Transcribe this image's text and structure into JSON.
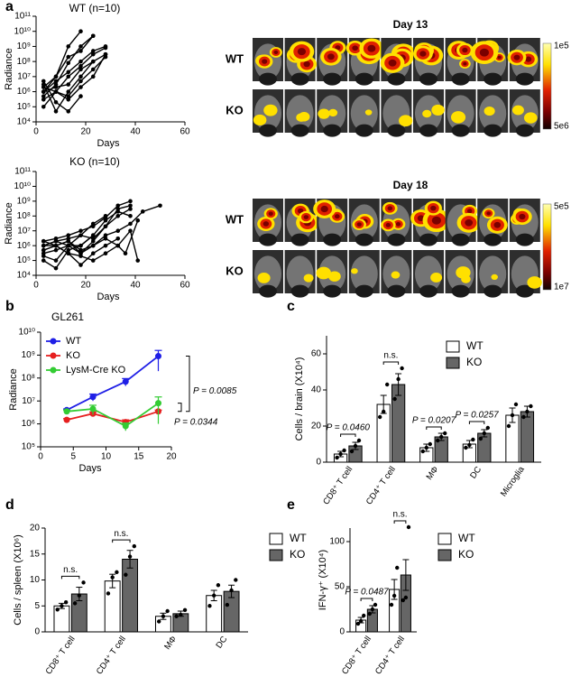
{
  "chart_data": [
    {
      "type": "line",
      "panel_label": "a",
      "title": "WT  (n=10)",
      "xlabel": "Days",
      "ylabel": "Radiance",
      "log_y": true,
      "xlim": [
        0,
        60
      ],
      "xticks": [
        0,
        20,
        40,
        60
      ],
      "ylim": [
        10000,
        100000000000
      ],
      "yticks": [
        {
          "value": 10000,
          "label": "10⁴"
        },
        {
          "value": 100000,
          "label": "10⁵"
        },
        {
          "value": 1000000,
          "label": "10⁶"
        },
        {
          "value": 10000000,
          "label": "10⁷"
        },
        {
          "value": 100000000,
          "label": "10⁸"
        },
        {
          "value": 1000000000,
          "label": "10⁹"
        },
        {
          "value": 10000000000,
          "label": "10¹⁰"
        },
        {
          "value": 100000000000,
          "label": "10¹¹"
        }
      ],
      "series": [
        {
          "color": "#000000",
          "x": [
            3,
            8,
            13,
            18
          ],
          "values": [
            1000000,
            10000000,
            1000000000,
            10000000000
          ]
        },
        {
          "color": "#000000",
          "x": [
            3,
            8,
            13,
            18,
            23
          ],
          "values": [
            500000,
            3000000,
            80000000,
            1000000000,
            5000000000
          ]
        },
        {
          "color": "#000000",
          "x": [
            3,
            8,
            13,
            18,
            23
          ],
          "values": [
            2000000,
            10000000,
            200000000,
            500000000,
            5000000000
          ]
        },
        {
          "color": "#000000",
          "x": [
            3,
            8,
            13,
            18,
            23,
            28
          ],
          "values": [
            1000000,
            5000000,
            20000000,
            100000000,
            500000000,
            1000000000
          ]
        },
        {
          "color": "#000000",
          "x": [
            3,
            8,
            13,
            18,
            23,
            28
          ],
          "values": [
            300000,
            1000000,
            10000000,
            50000000,
            300000000,
            800000000
          ]
        },
        {
          "color": "#000000",
          "x": [
            3,
            8,
            13,
            18,
            23,
            28
          ],
          "values": [
            1000000,
            2000000,
            3000000,
            30000000,
            100000000,
            300000000
          ]
        },
        {
          "color": "#000000",
          "x": [
            3,
            8,
            13,
            18,
            23,
            28
          ],
          "values": [
            100000,
            1000000,
            500000,
            5000000,
            30000000,
            200000000
          ]
        },
        {
          "color": "#000000",
          "x": [
            3,
            8,
            13,
            18,
            23
          ],
          "values": [
            3000000,
            50000,
            1000000,
            10000000,
            100000000
          ]
        },
        {
          "color": "#000000",
          "x": [
            3,
            8,
            13,
            18
          ],
          "values": [
            5000000,
            200000,
            50000,
            500000
          ]
        },
        {
          "color": "#000000",
          "x": [
            3,
            8,
            13,
            18,
            23,
            28
          ],
          "values": [
            2000000,
            1000000,
            300000,
            2000000,
            10000000,
            300000000
          ]
        }
      ]
    },
    {
      "type": "line",
      "title": "KO (n=10)",
      "xlabel": "Days",
      "ylabel": "Radiance",
      "log_y": true,
      "xlim": [
        0,
        60
      ],
      "xticks": [
        0,
        20,
        40,
        60
      ],
      "ylim": [
        10000,
        100000000000
      ],
      "yticks": [
        {
          "value": 10000,
          "label": "10⁴"
        },
        {
          "value": 100000,
          "label": "10⁵"
        },
        {
          "value": 1000000,
          "label": "10⁶"
        },
        {
          "value": 10000000,
          "label": "10⁷"
        },
        {
          "value": 100000000,
          "label": "10⁸"
        },
        {
          "value": 1000000000,
          "label": "10⁹"
        },
        {
          "value": 10000000000,
          "label": "10¹⁰"
        },
        {
          "value": 100000000000,
          "label": "10¹¹"
        }
      ],
      "series": [
        {
          "color": "#000000",
          "x": [
            3,
            8,
            13,
            18,
            23,
            28,
            33,
            38
          ],
          "values": [
            2000000,
            3000000,
            5000000,
            10000000,
            20000000,
            80000000,
            500000000,
            1000000000
          ]
        },
        {
          "color": "#000000",
          "x": [
            3,
            8,
            13,
            18,
            23,
            28,
            33,
            38
          ],
          "values": [
            1000000,
            2000000,
            3000000,
            5000000,
            3000000,
            20000000,
            300000000,
            500000000
          ]
        },
        {
          "color": "#000000",
          "x": [
            3,
            8,
            13,
            18,
            23,
            28,
            33,
            38
          ],
          "values": [
            500000,
            1000000,
            2000000,
            300000,
            2000000,
            20000000,
            100000000,
            300000000
          ]
        },
        {
          "color": "#000000",
          "x": [
            3,
            8,
            13,
            18,
            23,
            28,
            33,
            38
          ],
          "values": [
            300000,
            500000,
            1000000,
            1000000,
            5000000,
            50000000,
            200000000,
            100000000
          ]
        },
        {
          "color": "#000000",
          "x": [
            3,
            8,
            13,
            18,
            23,
            28,
            33,
            38,
            43,
            50
          ],
          "values": [
            1000000,
            1000000,
            2000000,
            500000,
            1000000,
            5000000,
            10000000,
            30000000,
            200000000,
            500000000
          ]
        },
        {
          "color": "#000000",
          "x": [
            3,
            8,
            13,
            18,
            23,
            28,
            33,
            36,
            41
          ],
          "values": [
            1000000,
            2000000,
            1000000,
            300000,
            1000000,
            3000000,
            1000000,
            300000,
            50000000
          ]
        },
        {
          "color": "#000000",
          "x": [
            3,
            8,
            13,
            18,
            23,
            28
          ],
          "values": [
            200000,
            100000,
            1000000,
            5000000,
            30000000,
            100000000
          ]
        },
        {
          "color": "#000000",
          "x": [
            3,
            8,
            13,
            18,
            23
          ],
          "values": [
            100000,
            30000,
            500000,
            1000000,
            5000000
          ]
        },
        {
          "color": "#000000",
          "x": [
            3,
            8,
            13,
            18,
            23,
            28,
            33
          ],
          "values": [
            2000000,
            1000000,
            300000,
            50000,
            300000,
            1000000,
            3000000
          ]
        },
        {
          "color": "#000000",
          "x": [
            3,
            8,
            13,
            18,
            23,
            28,
            33,
            38,
            41
          ],
          "values": [
            500000,
            1000000,
            300000,
            200000,
            100000,
            300000,
            1000000,
            10000000,
            100000
          ]
        }
      ]
    },
    {
      "type": "line",
      "panel_label": "b",
      "title": "GL261",
      "xlabel": "Days",
      "ylabel": "Radiance",
      "log_y": true,
      "legend": "upper left",
      "xlim": [
        0,
        20
      ],
      "xticks": [
        0,
        5,
        10,
        15,
        20
      ],
      "ylim": [
        100000,
        10000000000
      ],
      "yticks": [
        {
          "value": 100000,
          "label": "10⁵"
        },
        {
          "value": 1000000,
          "label": "10⁶"
        },
        {
          "value": 10000000,
          "label": "10⁷"
        },
        {
          "value": 100000000,
          "label": "10⁸"
        },
        {
          "value": 1000000000,
          "label": "10⁹"
        },
        {
          "value": 10000000000,
          "label": "10¹⁰"
        }
      ],
      "series": [
        {
          "name": "WT",
          "color": "#1f1fe6",
          "x": [
            4,
            8,
            13,
            18
          ],
          "values": [
            4000000,
            15000000,
            70000000,
            900000000
          ],
          "errors": [
            500000,
            5000000,
            25000000,
            700000000
          ]
        },
        {
          "name": "KO",
          "color": "#e61f1f",
          "x": [
            4,
            8,
            13,
            18
          ],
          "values": [
            1500000,
            2800000,
            1200000,
            3500000
          ],
          "errors": [
            200000,
            500000,
            300000,
            500000
          ]
        },
        {
          "name": "LysM-Cre KO",
          "color": "#33cc33",
          "x": [
            4,
            8,
            13,
            18
          ],
          "values": [
            3500000,
            4500000,
            800000,
            8000000
          ],
          "errors": [
            500000,
            2000000,
            300000,
            7000000
          ]
        }
      ],
      "p_values": [
        "P = 0.0085",
        "P = 0.0344"
      ]
    },
    {
      "type": "bar",
      "panel_label": "c",
      "ylabel": "Cells / brain (X10⁴)",
      "legend": "upper right",
      "categories": [
        "CD8⁺ T cell",
        "CD4⁺ T cell",
        "MΦ",
        "DC",
        "Microglia"
      ],
      "ylim": [
        0,
        70
      ],
      "yticks": [
        0,
        20,
        40,
        60
      ],
      "series": [
        {
          "name": "WT",
          "color": "#ffffff",
          "values": [
            4.5,
            32,
            8,
            10,
            26
          ],
          "errors": [
            1.5,
            5,
            2,
            2,
            4
          ],
          "points": [
            [
              2.5,
              4.5,
              6.5
            ],
            [
              25,
              28,
              43
            ],
            [
              6,
              8,
              10
            ],
            [
              8,
              9.5,
              12.5
            ],
            [
              20,
              26,
              32
            ]
          ]
        },
        {
          "name": "KO",
          "color": "#666666",
          "values": [
            9,
            43,
            14,
            16,
            28
          ],
          "errors": [
            2,
            6,
            2,
            2,
            3
          ],
          "points": [
            [
              6,
              9,
              12
            ],
            [
              35,
              46,
              52
            ],
            [
              12,
              14,
              16
            ],
            [
              13,
              16,
              19
            ],
            [
              25,
              28,
              31
            ]
          ]
        }
      ],
      "comparisons": [
        "P = 0.0460",
        "n.s.",
        "P = 0.0207",
        "P = 0.0257",
        null
      ]
    },
    {
      "type": "bar",
      "panel_label": "d",
      "ylabel": "Cells / spleen (X10⁶)",
      "legend": "right",
      "categories": [
        "CD8⁺ T cell",
        "CD4⁺ T cell",
        "MΦ",
        "DC"
      ],
      "ylim": [
        0,
        20
      ],
      "yticks": [
        0,
        5,
        10,
        15,
        20
      ],
      "series": [
        {
          "name": "WT",
          "color": "#ffffff",
          "values": [
            5,
            9.8,
            3,
            7
          ],
          "errors": [
            0.5,
            1.3,
            0.6,
            1
          ],
          "points": [
            [
              4.3,
              5,
              5.7
            ],
            [
              7.4,
              10.5,
              11.5
            ],
            [
              2,
              3,
              4
            ],
            [
              5,
              7,
              9
            ]
          ]
        },
        {
          "name": "KO",
          "color": "#666666",
          "values": [
            7.3,
            14,
            3.5,
            7.8
          ],
          "errors": [
            1.3,
            1.7,
            0.5,
            1.2
          ],
          "points": [
            [
              5.5,
              7,
              9.5
            ],
            [
              11,
              14.5,
              16.5
            ],
            [
              3,
              3.3,
              4.2
            ],
            [
              5.2,
              8,
              10
            ]
          ]
        }
      ],
      "comparisons": [
        "n.s.",
        "n.s.",
        null,
        null
      ]
    },
    {
      "type": "bar",
      "panel_label": "e",
      "ylabel": "IFN-γ⁺ (X10⁴)",
      "legend": "right",
      "categories": [
        "CD8⁺ T cell",
        "CD4⁺ T cell"
      ],
      "ylim": [
        0,
        115
      ],
      "yticks": [
        0,
        50,
        100
      ],
      "series": [
        {
          "name": "WT",
          "color": "#ffffff",
          "values": [
            13,
            47
          ],
          "errors": [
            3,
            11
          ],
          "points": [
            [
              9,
              12,
              18
            ],
            [
              30,
              40,
              71
            ]
          ]
        },
        {
          "name": "KO",
          "color": "#666666",
          "values": [
            25,
            63
          ],
          "errors": [
            4,
            17
          ],
          "points": [
            [
              20,
              25,
              30
            ],
            [
              35,
              38,
              116
            ]
          ]
        }
      ],
      "comparisons": [
        "P = 0.0487",
        "n.s."
      ]
    }
  ],
  "imaging": [
    {
      "title": "Day 13",
      "rows": [
        "WT",
        "KO"
      ],
      "row_colors": [
        "#1f1fe6",
        "#e61f1f"
      ],
      "scale_top": "1e5",
      "scale_bottom": "5e6"
    },
    {
      "title": "Day 18",
      "rows": [
        "WT",
        "KO"
      ],
      "row_colors": [
        "#1f1fe6",
        "#e61f1f"
      ],
      "scale_top": "5e5",
      "scale_bottom": "1e7"
    }
  ]
}
